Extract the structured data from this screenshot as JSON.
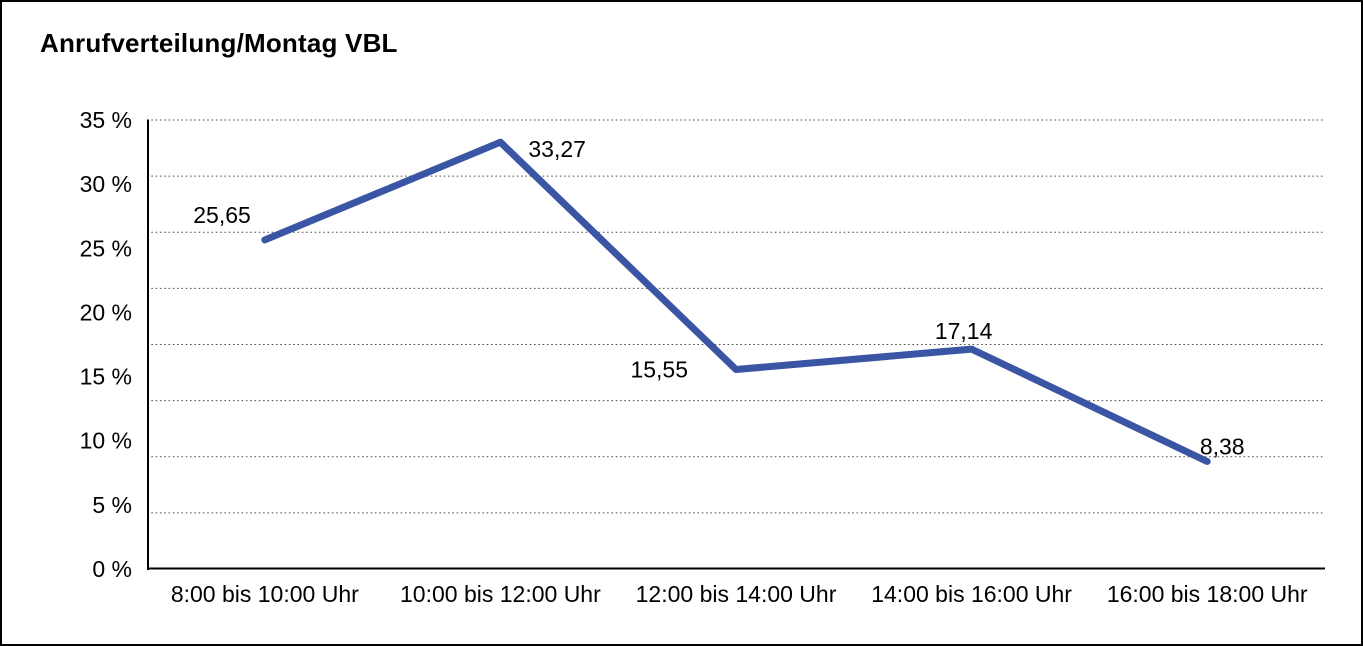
{
  "title": "Anrufverteilung/Montag VBL",
  "colors": {
    "line": "#3A55A3",
    "axis": "#000000",
    "gridline": "#4D4D4D",
    "text": "#000000",
    "background": "#FFFFFF",
    "border": "#000000"
  },
  "chart_data": {
    "type": "line",
    "title": "Anrufverteilung/Montag VBL",
    "categories": [
      "8:00 bis 10:00 Uhr",
      "10:00 bis 12:00 Uhr",
      "12:00 bis 14:00 Uhr",
      "14:00 bis 16:00 Uhr",
      "16:00 bis 18:00 Uhr"
    ],
    "values": [
      25.65,
      33.27,
      15.55,
      17.14,
      8.38
    ],
    "point_labels": [
      "25,65",
      "33,27",
      "15,55",
      "17,14",
      "8,38"
    ],
    "y_ticks": [
      {
        "label": "35 %",
        "value": 35
      },
      {
        "label": "30 %",
        "value": 30
      },
      {
        "label": "25 %",
        "value": 25
      },
      {
        "label": "20 %",
        "value": 20
      },
      {
        "label": "15 %",
        "value": 15
      },
      {
        "label": "10 %",
        "value": 10
      },
      {
        "label": "5 %",
        "value": 5
      },
      {
        "label": "0 %",
        "value": 0
      }
    ],
    "ylim": [
      0,
      35
    ],
    "xlabel": "",
    "ylabel": "",
    "grid": "horizontal-dotted",
    "gridline_divisions": 8,
    "legend": "none",
    "markers": "none"
  }
}
